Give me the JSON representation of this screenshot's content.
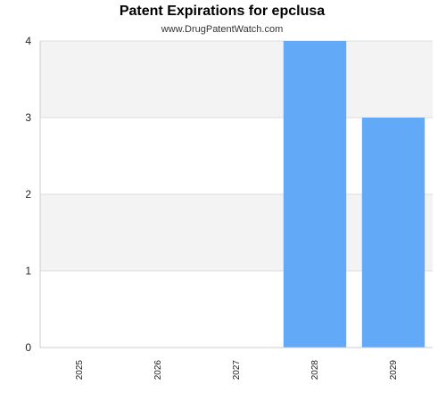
{
  "chart_data": {
    "type": "bar",
    "title": "Patent Expirations for epclusa",
    "subtitle": "www.DrugPatentWatch.com",
    "categories": [
      "2025",
      "2026",
      "2027",
      "2028",
      "2029"
    ],
    "values": [
      0,
      0,
      0,
      4,
      3
    ],
    "yticks": [
      0,
      1,
      2,
      3,
      4
    ],
    "ylim": [
      0,
      4
    ],
    "xlabel": "",
    "ylabel": "",
    "grid": true,
    "bar_color": "#62a9f7",
    "band_color": "#f3f3f3",
    "grid_color": "#dddddd"
  }
}
